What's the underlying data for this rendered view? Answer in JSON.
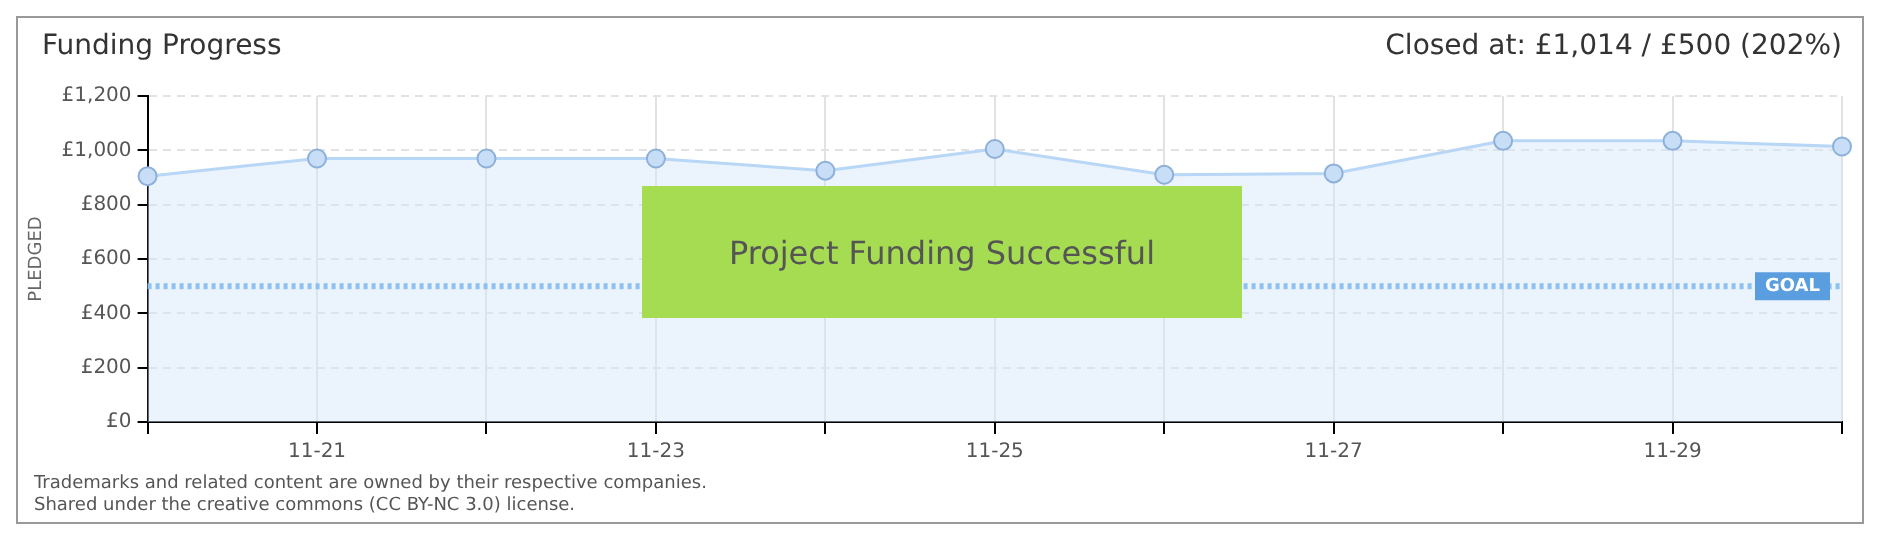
{
  "chart_data": {
    "type": "area",
    "title": "Funding Progress",
    "subtitle": "Closed at: £1,014 / £500 (202%)",
    "ylabel": "PLEDGED",
    "categories": [
      null,
      "11-21",
      null,
      "11-23",
      null,
      "11-25",
      null,
      "11-27",
      null,
      "11-29",
      null
    ],
    "series": [
      {
        "color": "#b8d6f5",
        "values": [
          905,
          970,
          970,
          970,
          925,
          1005,
          910,
          915,
          1035,
          1035,
          1014
        ]
      }
    ],
    "ylim": [
      0,
      1200
    ],
    "yticks": [
      {
        "value": 0,
        "label": "£0"
      },
      {
        "value": 200,
        "label": "£200"
      },
      {
        "value": 400,
        "label": "£400"
      },
      {
        "value": 600,
        "label": "£600"
      },
      {
        "value": 800,
        "label": "£800"
      },
      {
        "value": 1000,
        "label": "£1,000"
      },
      {
        "value": 1200,
        "label": "£1,200"
      }
    ],
    "ref_lines": [
      {
        "axis": "y",
        "value": 500,
        "label": "GOAL",
        "color": "#8ec0f0",
        "line_style": "dotted"
      }
    ],
    "annotations": [
      "Project Funding Successful",
      "Trademarks and related content are owned by their respective companies.",
      "Shared under the creative commons (CC BY-NC 3.0) license."
    ],
    "grid": true,
    "legend": false,
    "marker": "circle",
    "line_style": "solid"
  }
}
